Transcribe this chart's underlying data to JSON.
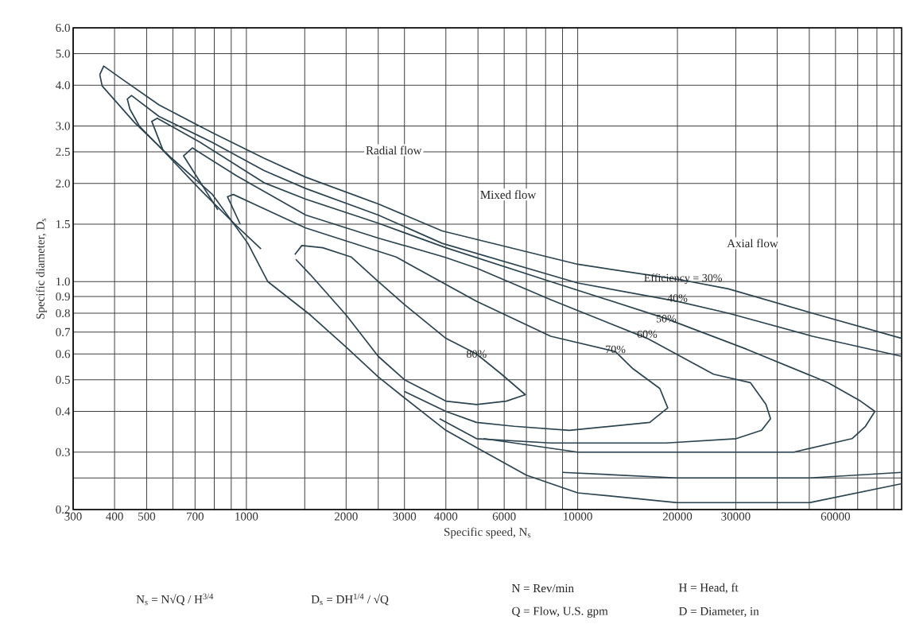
{
  "chart_data": {
    "type": "line",
    "xlabel": "Specific speed, N$_{s}$",
    "ylabel": "Specific diameter, D$_{s}$",
    "log": "xy",
    "grid": true,
    "xlim": [
      300,
      95000
    ],
    "ylim": [
      0.2,
      6.0
    ],
    "xticks": [
      300,
      400,
      500,
      {
        "value": 600,
        "label": null
      },
      700,
      {
        "value": 800,
        "label": null
      },
      {
        "value": 900,
        "label": null
      },
      1000,
      {
        "value": 1500,
        "label": null
      },
      2000,
      {
        "value": 2500,
        "label": null
      },
      3000,
      4000,
      {
        "value": 5000,
        "label": null
      },
      6000,
      {
        "value": 7000,
        "label": null
      },
      {
        "value": 8000,
        "label": null
      },
      {
        "value": 9000,
        "label": null
      },
      10000,
      20000,
      30000,
      {
        "value": 40000,
        "label": null
      },
      {
        "value": 50000,
        "label": null
      },
      60000,
      {
        "value": 70000,
        "label": null
      },
      {
        "value": 80000,
        "label": null
      },
      {
        "value": 90000,
        "label": null
      }
    ],
    "yticks": [
      0.2,
      {
        "value": 0.25,
        "label": null
      },
      0.3,
      0.4,
      0.5,
      0.6,
      0.7,
      0.8,
      0.9,
      {
        "value": 1,
        "label": "1.0"
      },
      1.5,
      {
        "value": 2,
        "label": "2.0"
      },
      2.5,
      {
        "value": 3,
        "label": "3.0"
      },
      {
        "value": 4,
        "label": "4.0"
      },
      {
        "value": 5,
        "label": "5.0"
      },
      {
        "value": 6,
        "label": "6.0"
      }
    ],
    "series": [
      {
        "color": "#2b4452",
        "x": [
          95000,
          51100,
          28500,
          20800,
          10000,
          3900,
          2500,
          1510,
          1130,
          790,
          545,
          421,
          371,
          361,
          367,
          460,
          595,
          790,
          1010,
          1160,
          1560,
          2000,
          2500,
          3000,
          4000,
          4950,
          7000,
          10000,
          20000,
          30000,
          50000,
          95000
        ],
        "values": [
          0.67,
          0.8,
          0.95,
          1.01,
          1.13,
          1.43,
          1.73,
          2.09,
          2.39,
          2.86,
          3.48,
          4.18,
          4.58,
          4.31,
          3.98,
          3.07,
          2.39,
          1.85,
          1.31,
          1.0,
          0.79,
          0.63,
          0.51,
          0.44,
          0.35,
          0.31,
          0.255,
          0.225,
          0.21,
          0.21,
          0.21,
          0.24
        ]
      },
      {
        "color": "#2b4452",
        "x": [
          95000,
          51100,
          28500,
          20000,
          10000,
          3900,
          2500,
          1510,
          1130,
          790,
          545,
          450,
          437,
          445,
          475,
          545,
          727,
          935,
          1107,
          3000,
          9000,
          20000,
          50000,
          95000
        ],
        "values": [
          0.59,
          0.68,
          0.8,
          0.87,
          0.99,
          1.31,
          1.6,
          1.93,
          2.19,
          2.67,
          3.21,
          3.72,
          3.63,
          3.38,
          3.0,
          2.6,
          1.91,
          1.48,
          1.26,
          null,
          0.26,
          0.25,
          0.25,
          0.26
        ]
      },
      {
        "color": "#2b4452",
        "x": [
          560,
          518,
          538,
          727,
          1130,
          1510,
          2500,
          4000,
          8290,
          18500,
          32400,
          56900,
          71400,
          78900,
          73900,
          67300,
          44900,
          22200,
          10000,
          5200
        ],
        "values": [
          2.53,
          3.1,
          3.17,
          2.67,
          2.01,
          1.79,
          1.51,
          1.27,
          1.0,
          0.77,
          0.62,
          0.49,
          0.43,
          0.4,
          0.36,
          0.33,
          0.3,
          0.3,
          0.3,
          0.33
        ]
      },
      {
        "color": "#2b4452",
        "x": [
          820,
          646,
          687,
          935,
          1510,
          2500,
          3950,
          4950,
          8290,
          16200,
          25700,
          33200,
          37000,
          38200,
          35900,
          30100,
          18500,
          8290,
          4950,
          3830
        ],
        "values": [
          1.66,
          2.43,
          2.57,
          2.11,
          1.6,
          1.36,
          1.19,
          1.1,
          0.88,
          0.67,
          0.52,
          0.49,
          0.42,
          0.38,
          0.35,
          0.33,
          0.32,
          0.32,
          0.33,
          0.38
        ]
      },
      {
        "color": "#2b4452",
        "x": [
          958,
          877,
          913,
          1510,
          2830,
          4950,
          8290,
          13000,
          14700,
          17700,
          18700,
          16500,
          9430,
          6430,
          4950,
          4000,
          3000
        ],
        "values": [
          1.5,
          1.82,
          1.85,
          1.46,
          1.19,
          0.87,
          0.68,
          0.61,
          0.54,
          0.47,
          0.41,
          0.37,
          0.35,
          0.36,
          0.37,
          0.4,
          0.46
        ]
      },
      {
        "color": "#2b4452",
        "x": [
          1400,
          1470,
          1700,
          2070,
          2500,
          3000,
          4000,
          4950,
          5890,
          6950,
          6090,
          4950,
          4000,
          3000,
          2500,
          2000,
          1560,
          1410
        ],
        "values": [
          1.21,
          1.29,
          1.27,
          1.19,
          1.0,
          0.85,
          0.67,
          0.6,
          0.52,
          0.45,
          0.43,
          0.42,
          0.43,
          0.5,
          0.59,
          0.79,
          1.05,
          1.17
        ]
      }
    ],
    "annotations": [
      {
        "text": "Efficiency = 30%",
        "x": 20800,
        "y": 1.02
      },
      {
        "text": "40%",
        "x": 20000,
        "y": 0.89
      },
      {
        "text": "50%",
        "x": 18500,
        "y": 0.77
      },
      {
        "text": "60%",
        "x": 16200,
        "y": 0.69
      },
      {
        "text": "70%",
        "x": 13000,
        "y": 0.62
      },
      {
        "text": "80%",
        "x": 4950,
        "y": 0.6
      },
      "Radial flow",
      "Mixed flow",
      "Axial flow",
      "N$_{s}$ = N√Q / H$^{3/4}$",
      "D$_{s}$ = DH$^{1/4}$ / √Q",
      "N = Rev/min",
      "Q = Flow, U.S. gpm",
      "H = Head, ft",
      "D = Diameter, in"
    ]
  }
}
